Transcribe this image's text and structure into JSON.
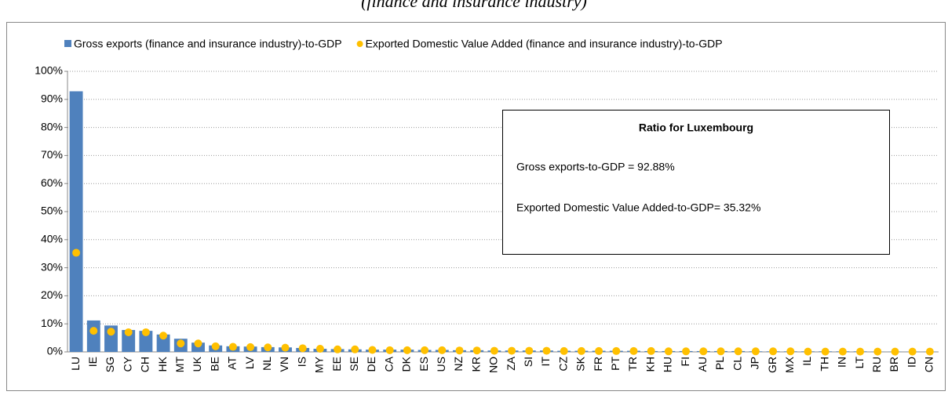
{
  "chart_data": {
    "type": "bar",
    "title": "(finance and insurance industry)",
    "categories": [
      "LU",
      "IE",
      "SG",
      "CY",
      "CH",
      "HK",
      "MT",
      "UK",
      "BE",
      "AT",
      "LV",
      "NL",
      "VN",
      "IS",
      "MY",
      "EE",
      "SE",
      "DE",
      "CA",
      "DK",
      "ES",
      "US",
      "NZ",
      "KR",
      "NO",
      "ZA",
      "SI",
      "IT",
      "CZ",
      "SK",
      "FR",
      "PT",
      "TR",
      "KH",
      "HU",
      "FI",
      "AU",
      "PL",
      "CL",
      "JP",
      "GR",
      "MX",
      "IL",
      "TH",
      "IN",
      "LT",
      "RU",
      "BR",
      "ID",
      "CN"
    ],
    "series": [
      {
        "name": "Gross exports (finance and insurance industry)-to-GDP",
        "type": "bar",
        "color": "#4f81bd",
        "values": [
          92.88,
          11.2,
          9.4,
          7.8,
          7.5,
          6.2,
          4.7,
          3.3,
          2.3,
          2.0,
          1.9,
          1.7,
          1.6,
          1.4,
          1.1,
          1.0,
          0.9,
          0.8,
          0.8,
          0.8,
          0.7,
          0.7,
          0.6,
          0.6,
          0.5,
          0.5,
          0.5,
          0.5,
          0.4,
          0.4,
          0.4,
          0.4,
          0.4,
          0.3,
          0.3,
          0.3,
          0.3,
          0.3,
          0.3,
          0.2,
          0.2,
          0.2,
          0.2,
          0.2,
          0.2,
          0.2,
          0.1,
          0.1,
          0.1,
          0.1
        ]
      },
      {
        "name": "Exported Domestic Value Added (finance and insurance industry)-to-GDP",
        "type": "scatter",
        "color": "#ffc000",
        "values": [
          35.32,
          7.5,
          7.2,
          7.0,
          7.0,
          5.8,
          3.0,
          3.0,
          2.0,
          1.8,
          1.7,
          1.6,
          1.5,
          1.3,
          1.1,
          0.9,
          0.9,
          0.7,
          0.6,
          0.6,
          0.6,
          0.6,
          0.5,
          0.5,
          0.4,
          0.4,
          0.4,
          0.4,
          0.3,
          0.3,
          0.3,
          0.3,
          0.3,
          0.3,
          0.2,
          0.2,
          0.2,
          0.2,
          0.2,
          0.2,
          0.2,
          0.2,
          0.1,
          0.1,
          0.1,
          0.1,
          0.1,
          0.1,
          0.1,
          0.1
        ]
      }
    ],
    "ylim": [
      0,
      100
    ],
    "yticks": [
      {
        "value": 0,
        "label": "0%"
      },
      {
        "value": 10,
        "label": "10%"
      },
      {
        "value": 20,
        "label": "20%"
      },
      {
        "value": 30,
        "label": "30%"
      },
      {
        "value": 40,
        "label": "40%"
      },
      {
        "value": 50,
        "label": "50%"
      },
      {
        "value": 60,
        "label": "60%"
      },
      {
        "value": 70,
        "label": "70%"
      },
      {
        "value": 80,
        "label": "80%"
      },
      {
        "value": 90,
        "label": "90%"
      },
      {
        "value": 100,
        "label": "100%"
      }
    ],
    "grid": true,
    "annotation": {
      "title": "Ratio for Luxembourg",
      "lines": [
        "Gross exports-to-GDP = 92.88%",
        "Exported Domestic Value Added-to-GDP= 35.32%"
      ]
    }
  }
}
